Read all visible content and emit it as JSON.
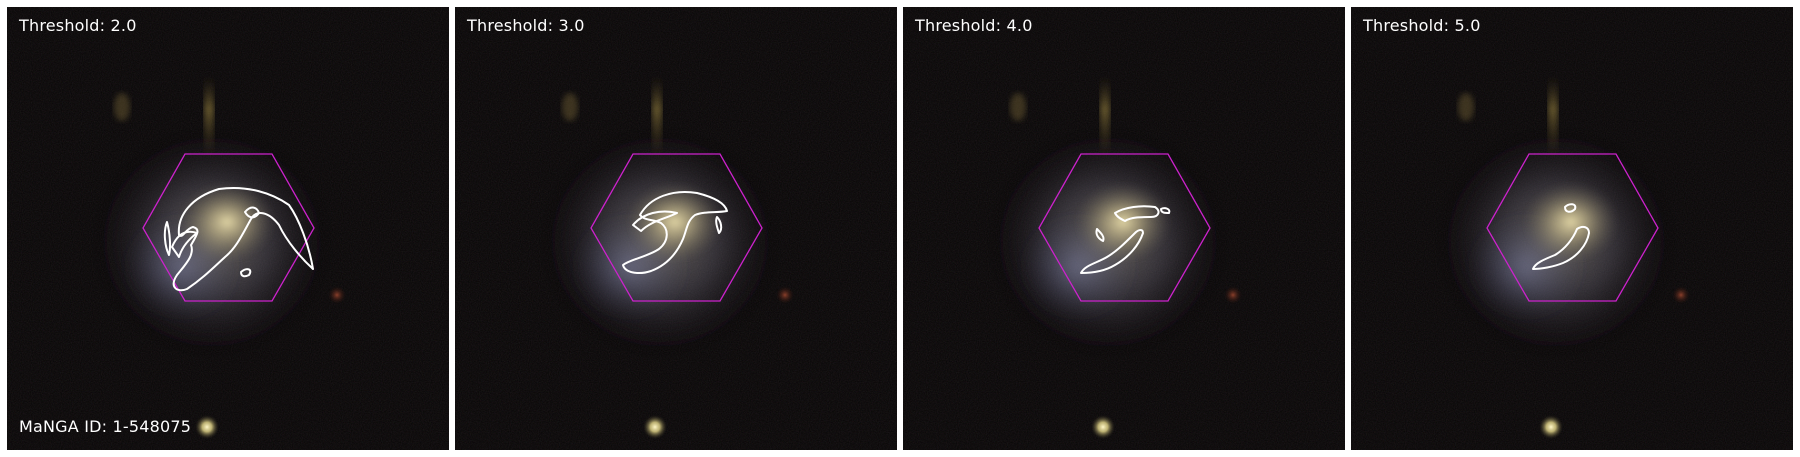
{
  "figure": {
    "manga_id_label": "MaNGA ID: 1-548075",
    "hexagon_color": "#cc22cc",
    "contour_color": "#ffffff",
    "panels": [
      {
        "threshold_label": "Threshold: 2.0"
      },
      {
        "threshold_label": "Threshold: 3.0"
      },
      {
        "threshold_label": "Threshold: 4.0"
      },
      {
        "threshold_label": "Threshold: 5.0"
      }
    ]
  }
}
